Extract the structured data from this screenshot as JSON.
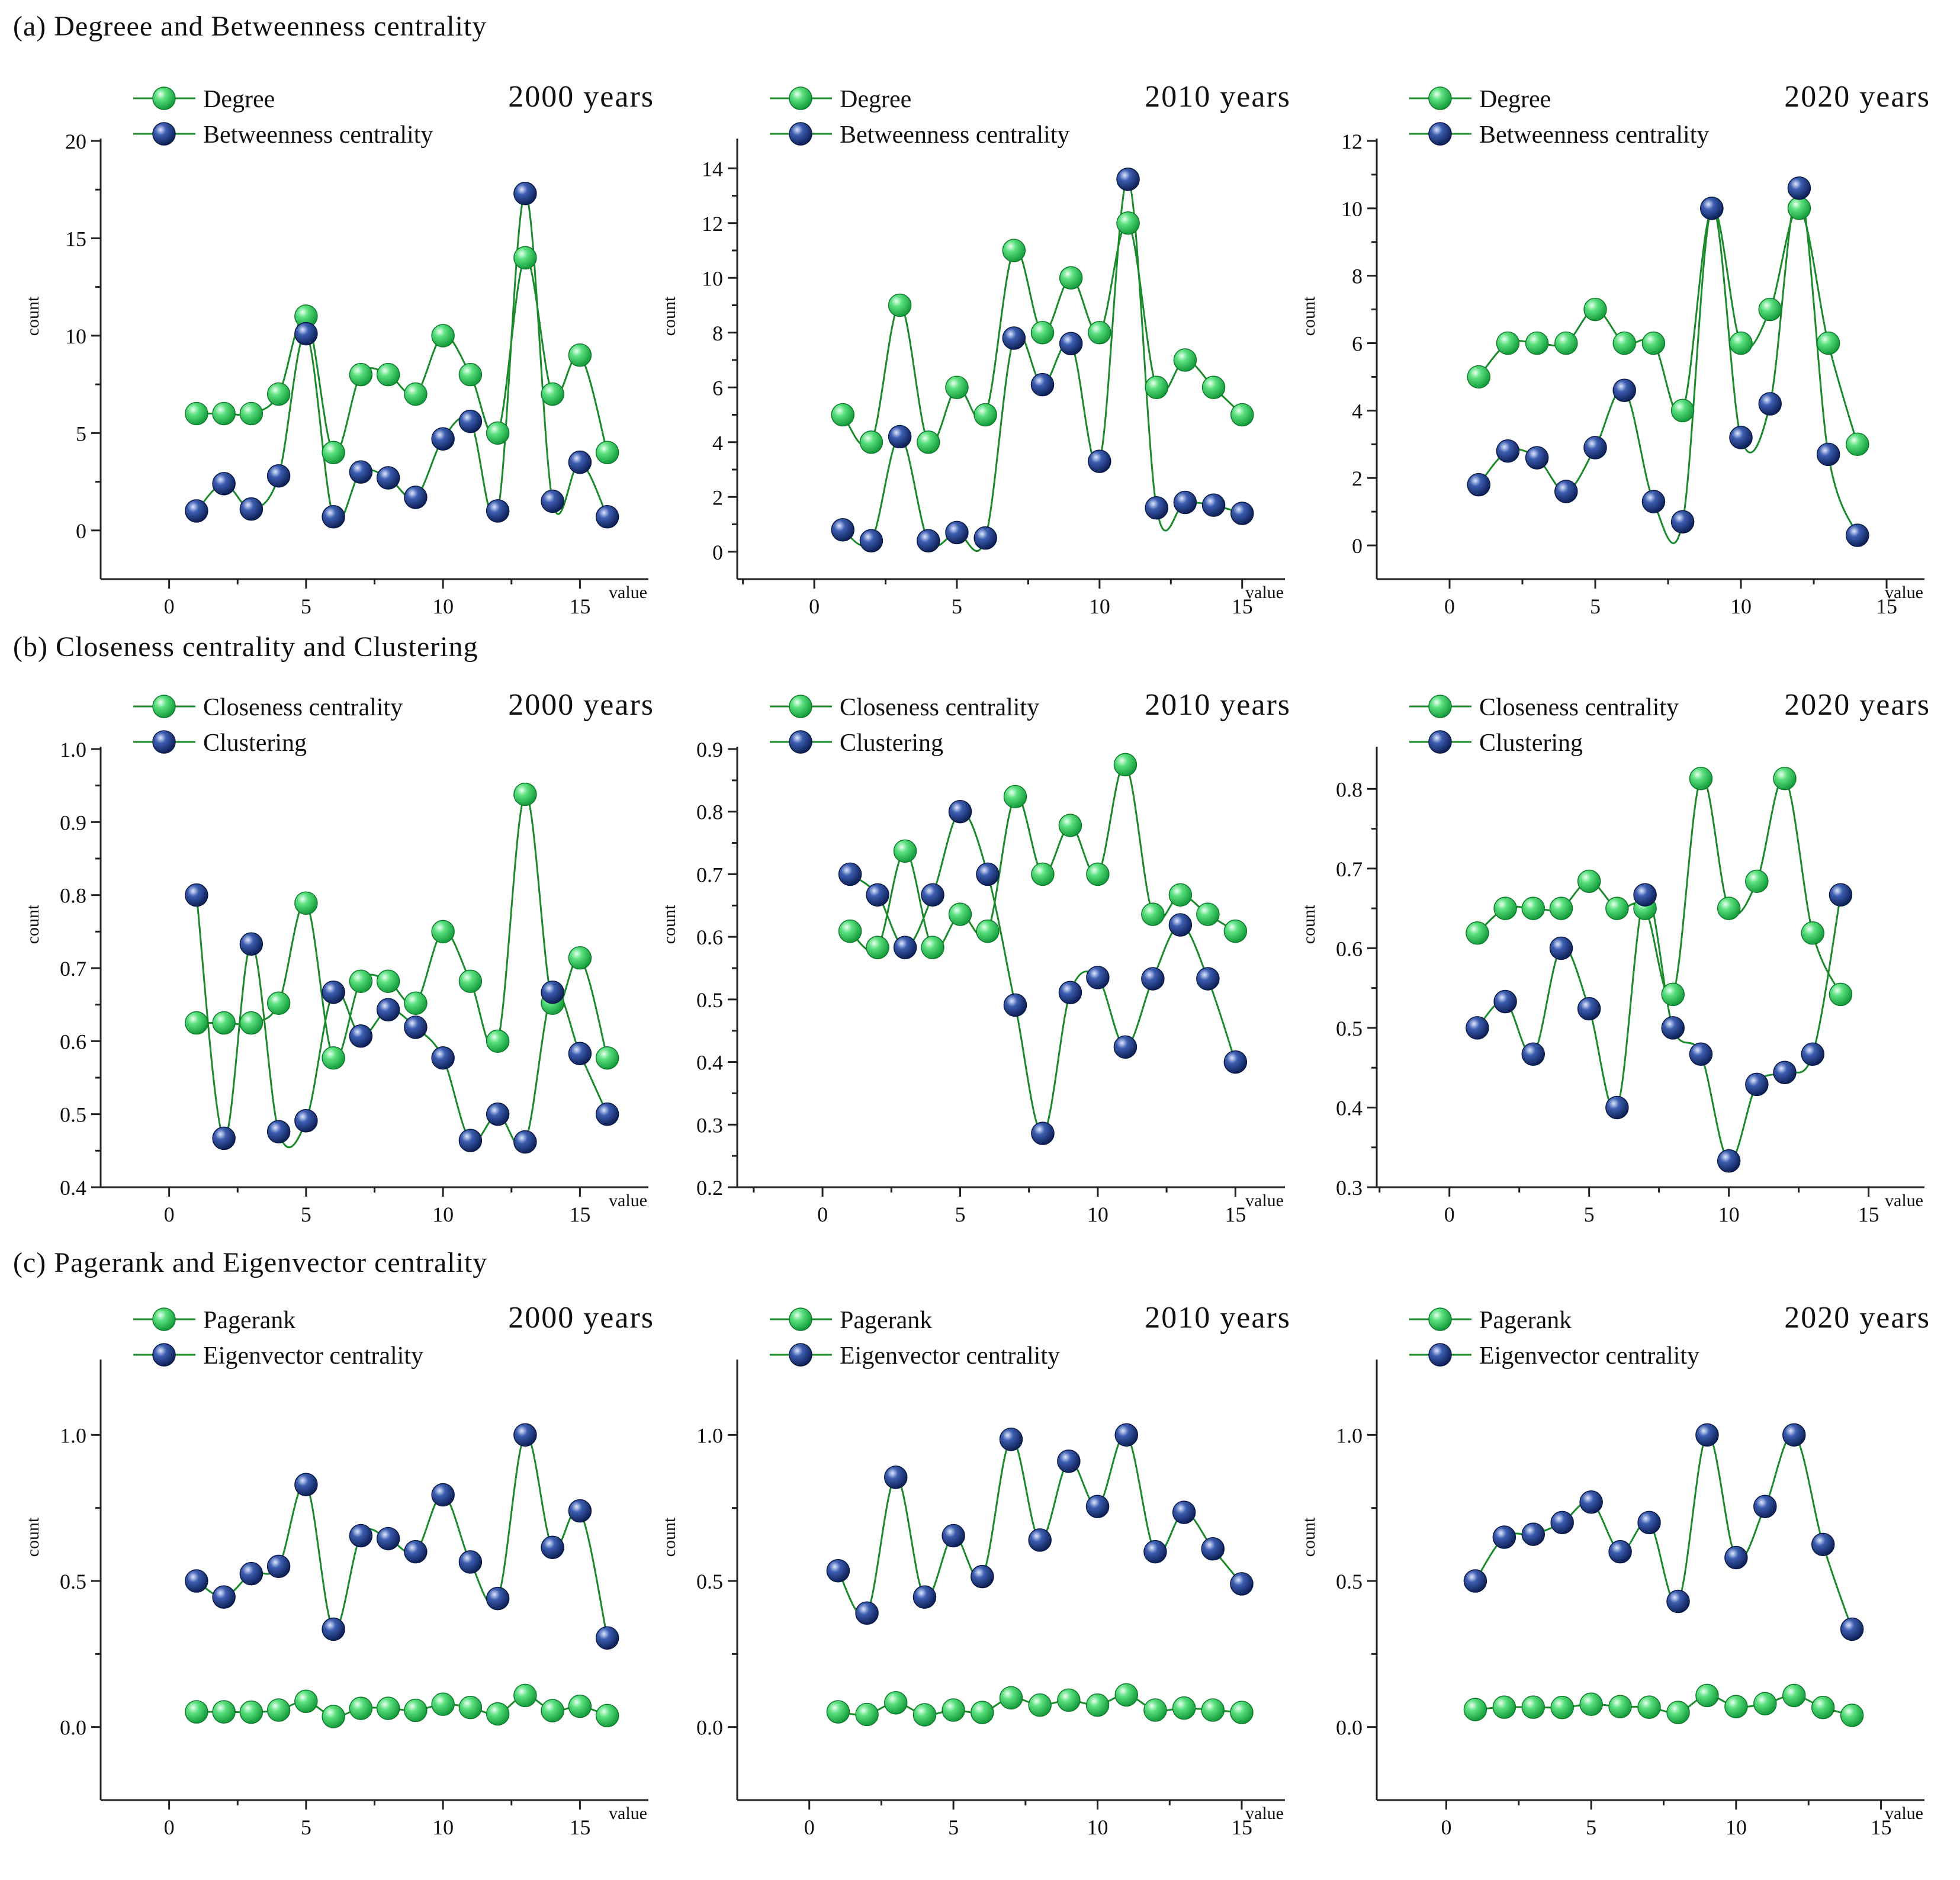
{
  "colors": {
    "series_a": "#2fd15b",
    "series_b": "#1f3d8f",
    "line": "#1b8a2a"
  },
  "sections": [
    {
      "label": "(a) Degreee and Betweenness centrality"
    },
    {
      "label": "(b) Closeness centrality and Clustering"
    },
    {
      "label": "(c) Pagerank and Eigenvector centrality"
    }
  ],
  "chart_data": [
    {
      "type": "line",
      "section": "(a) Degreee and Betweenness centrality",
      "title": "2000 years",
      "xlabel": "value",
      "ylabel": "count",
      "xlim": [
        -2.5,
        17.5
      ],
      "ylim": [
        -2.5,
        20
      ],
      "xticks": [
        0,
        5,
        10,
        15
      ],
      "yticks": [
        0,
        5,
        10,
        15,
        20
      ],
      "legend": "top-left",
      "x": [
        1,
        2,
        3,
        4,
        5,
        6,
        7,
        8,
        9,
        10,
        11,
        12,
        13,
        14,
        15,
        16
      ],
      "series": [
        {
          "name": "Degree",
          "values": [
            6,
            6,
            6,
            7,
            11,
            4,
            8,
            8,
            7,
            10,
            8,
            5,
            14,
            7,
            9,
            4
          ]
        },
        {
          "name": "Betweenness centrality",
          "values": [
            1.0,
            2.4,
            1.1,
            2.8,
            10.1,
            0.7,
            3.0,
            2.7,
            1.7,
            4.7,
            5.6,
            1.0,
            17.3,
            1.5,
            3.5,
            0.7
          ]
        }
      ]
    },
    {
      "type": "line",
      "section": "(a) Degreee and Betweenness centrality",
      "title": "2010 years",
      "xlabel": "value",
      "ylabel": "count",
      "xlim": [
        -2.7,
        16.5
      ],
      "ylim": [
        -1,
        15
      ],
      "xticks": [
        0,
        5,
        10,
        15
      ],
      "yticks": [
        0,
        2,
        4,
        6,
        8,
        10,
        12,
        14
      ],
      "legend": "top-left",
      "x": [
        1,
        2,
        3,
        4,
        5,
        6,
        7,
        8,
        9,
        10,
        11,
        12,
        13,
        14,
        15
      ],
      "series": [
        {
          "name": "Degree",
          "values": [
            5,
            4,
            9,
            4,
            6,
            5,
            11,
            8,
            10,
            8,
            12,
            6,
            7,
            6,
            5
          ]
        },
        {
          "name": "Betweenness centrality",
          "values": [
            0.8,
            0.4,
            4.2,
            0.4,
            0.7,
            0.5,
            7.8,
            6.1,
            7.6,
            3.3,
            13.6,
            1.6,
            1.8,
            1.7,
            1.4
          ]
        }
      ]
    },
    {
      "type": "line",
      "section": "(a) Degreee and Betweenness centrality",
      "title": "2020 years",
      "xlabel": "value",
      "ylabel": "count",
      "xlim": [
        -2.5,
        16.3
      ],
      "ylim": [
        -1,
        12
      ],
      "xticks": [
        0,
        5,
        10,
        15
      ],
      "yticks": [
        0,
        2,
        4,
        6,
        8,
        10,
        12
      ],
      "legend": "top-left",
      "x": [
        1,
        2,
        3,
        4,
        5,
        6,
        7,
        8,
        9,
        10,
        11,
        12,
        13,
        14
      ],
      "series": [
        {
          "name": "Degree",
          "values": [
            5,
            6,
            6,
            6,
            7,
            6,
            6,
            4,
            10,
            6,
            7,
            10,
            6,
            3
          ]
        },
        {
          "name": "Betweenness centrality",
          "values": [
            1.8,
            2.8,
            2.6,
            1.6,
            2.9,
            4.6,
            1.3,
            0.7,
            10.0,
            3.2,
            4.2,
            10.6,
            2.7,
            0.3
          ]
        }
      ]
    },
    {
      "type": "line",
      "section": "(b) Closeness centrality and Clustering",
      "title": "2000 years",
      "xlabel": "value",
      "ylabel": "count",
      "xlim": [
        -2.5,
        17.5
      ],
      "ylim": [
        0.4,
        1.0
      ],
      "xticks": [
        0,
        5,
        10,
        15
      ],
      "yticks": [
        0.4,
        0.5,
        0.6,
        0.7,
        0.8,
        0.9,
        1.0
      ],
      "legend": "top-left",
      "x": [
        1,
        2,
        3,
        4,
        5,
        6,
        7,
        8,
        9,
        10,
        11,
        12,
        13,
        14,
        15,
        16
      ],
      "series": [
        {
          "name": "Closeness centrality",
          "values": [
            0.625,
            0.625,
            0.625,
            0.652,
            0.789,
            0.577,
            0.682,
            0.682,
            0.652,
            0.75,
            0.682,
            0.6,
            0.938,
            0.652,
            0.714,
            0.577
          ]
        },
        {
          "name": "Clustering",
          "values": [
            0.8,
            0.467,
            0.733,
            0.476,
            0.491,
            0.667,
            0.607,
            0.643,
            0.619,
            0.577,
            0.464,
            0.5,
            0.462,
            0.667,
            0.583,
            0.5
          ]
        }
      ]
    },
    {
      "type": "line",
      "section": "(b) Closeness centrality and Clustering",
      "title": "2010 years",
      "xlabel": "value",
      "ylabel": "count",
      "xlim": [
        -3.1,
        16.8
      ],
      "ylim": [
        0.2,
        0.9
      ],
      "xticks": [
        0,
        5,
        10,
        15
      ],
      "yticks": [
        0.2,
        0.3,
        0.4,
        0.5,
        0.6,
        0.7,
        0.8,
        0.9
      ],
      "legend": "top-left",
      "x": [
        1,
        2,
        3,
        4,
        5,
        6,
        7,
        8,
        9,
        10,
        11,
        12,
        13,
        14,
        15
      ],
      "series": [
        {
          "name": "Closeness centrality",
          "values": [
            0.609,
            0.583,
            0.737,
            0.583,
            0.636,
            0.609,
            0.824,
            0.7,
            0.778,
            0.7,
            0.875,
            0.636,
            0.667,
            0.636,
            0.609
          ]
        },
        {
          "name": "Clustering",
          "values": [
            0.7,
            0.667,
            0.583,
            0.667,
            0.8,
            0.7,
            0.491,
            0.286,
            0.511,
            0.535,
            0.424,
            0.533,
            0.619,
            0.533,
            0.4
          ]
        }
      ]
    },
    {
      "type": "line",
      "section": "(b) Closeness centrality and Clustering",
      "title": "2020 years",
      "xlabel": "value",
      "ylabel": "count",
      "xlim": [
        -2.6,
        17.0
      ],
      "ylim": [
        0.3,
        0.85
      ],
      "xticks": [
        0,
        5,
        10,
        15
      ],
      "yticks": [
        0.3,
        0.4,
        0.5,
        0.6,
        0.7,
        0.8
      ],
      "legend": "top-left",
      "x": [
        1,
        2,
        3,
        4,
        5,
        6,
        7,
        8,
        9,
        10,
        11,
        12,
        13,
        14
      ],
      "series": [
        {
          "name": "Closeness centrality",
          "values": [
            0.619,
            0.65,
            0.65,
            0.65,
            0.684,
            0.65,
            0.65,
            0.542,
            0.813,
            0.65,
            0.684,
            0.813,
            0.619,
            0.542
          ]
        },
        {
          "name": "Clustering",
          "values": [
            0.5,
            0.533,
            0.467,
            0.6,
            0.524,
            0.4,
            0.667,
            0.5,
            0.467,
            0.333,
            0.429,
            0.444,
            0.467,
            0.667
          ]
        }
      ]
    },
    {
      "type": "line",
      "section": "(c) Pagerank and Eigenvector centrality",
      "title": "2000 years",
      "xlabel": "value",
      "ylabel": "count",
      "xlim": [
        -2.5,
        17.5
      ],
      "ylim": [
        -0.25,
        1.25
      ],
      "xticks": [
        0,
        5,
        10,
        15
      ],
      "yticks": [
        0.0,
        0.5,
        1.0
      ],
      "legend": "top-left",
      "x": [
        1,
        2,
        3,
        4,
        5,
        6,
        7,
        8,
        9,
        10,
        11,
        12,
        13,
        14,
        15,
        16
      ],
      "series": [
        {
          "name": "Pagerank",
          "values": [
            0.052,
            0.052,
            0.051,
            0.058,
            0.088,
            0.036,
            0.064,
            0.064,
            0.057,
            0.078,
            0.067,
            0.045,
            0.108,
            0.056,
            0.071,
            0.039
          ]
        },
        {
          "name": "Eigenvector centrality",
          "values": [
            0.5,
            0.445,
            0.525,
            0.55,
            0.83,
            0.335,
            0.655,
            0.645,
            0.6,
            0.795,
            0.565,
            0.44,
            1.0,
            0.615,
            0.74,
            0.305
          ]
        }
      ]
    },
    {
      "type": "line",
      "section": "(c) Pagerank and Eigenvector centrality",
      "title": "2010 years",
      "xlabel": "value",
      "ylabel": "count",
      "xlim": [
        -2.5,
        16.5
      ],
      "ylim": [
        -0.25,
        1.25
      ],
      "xticks": [
        0,
        5,
        10,
        15
      ],
      "yticks": [
        0.0,
        0.5,
        1.0
      ],
      "legend": "top-left",
      "x": [
        1,
        2,
        3,
        4,
        5,
        6,
        7,
        8,
        9,
        10,
        11,
        12,
        13,
        14,
        15
      ],
      "series": [
        {
          "name": "Pagerank",
          "values": [
            0.052,
            0.043,
            0.083,
            0.042,
            0.058,
            0.05,
            0.1,
            0.075,
            0.092,
            0.075,
            0.11,
            0.058,
            0.065,
            0.058,
            0.05
          ]
        },
        {
          "name": "Eigenvector centrality",
          "values": [
            0.535,
            0.39,
            0.855,
            0.445,
            0.655,
            0.515,
            0.985,
            0.64,
            0.91,
            0.755,
            1.0,
            0.6,
            0.735,
            0.61,
            0.49
          ]
        }
      ]
    },
    {
      "type": "line",
      "section": "(c) Pagerank and Eigenvector centrality",
      "title": "2020 years",
      "xlabel": "value",
      "ylabel": "count",
      "xlim": [
        -2.4,
        16.5
      ],
      "ylim": [
        -0.25,
        1.25
      ],
      "xticks": [
        0,
        5,
        10,
        15
      ],
      "yticks": [
        0.0,
        0.5,
        1.0
      ],
      "legend": "top-left",
      "x": [
        1,
        2,
        3,
        4,
        5,
        6,
        7,
        8,
        9,
        10,
        11,
        12,
        13,
        14
      ],
      "series": [
        {
          "name": "Pagerank",
          "values": [
            0.06,
            0.068,
            0.068,
            0.067,
            0.078,
            0.07,
            0.068,
            0.05,
            0.108,
            0.07,
            0.08,
            0.108,
            0.067,
            0.04
          ]
        },
        {
          "name": "Eigenvector centrality",
          "values": [
            0.5,
            0.65,
            0.66,
            0.7,
            0.77,
            0.6,
            0.7,
            0.43,
            1.0,
            0.58,
            0.755,
            1.0,
            0.625,
            0.335
          ]
        }
      ]
    }
  ]
}
